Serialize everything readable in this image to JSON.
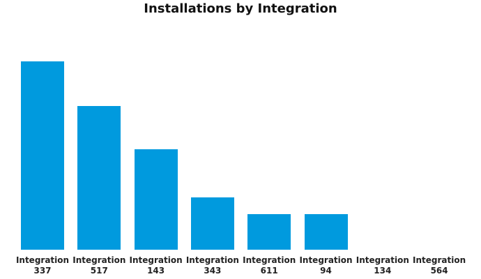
{
  "chart_data": {
    "type": "bar",
    "title": "Installations by Integration",
    "categories": [
      "Integration 337",
      "Integration 517",
      "Integration 143",
      "Integration 343",
      "Integration 611",
      "Integration 94",
      "Integration 134",
      "Integration 564"
    ],
    "values": [
      21,
      16,
      11.2,
      5.8,
      4,
      4,
      0,
      0
    ],
    "color": "#009ade"
  }
}
